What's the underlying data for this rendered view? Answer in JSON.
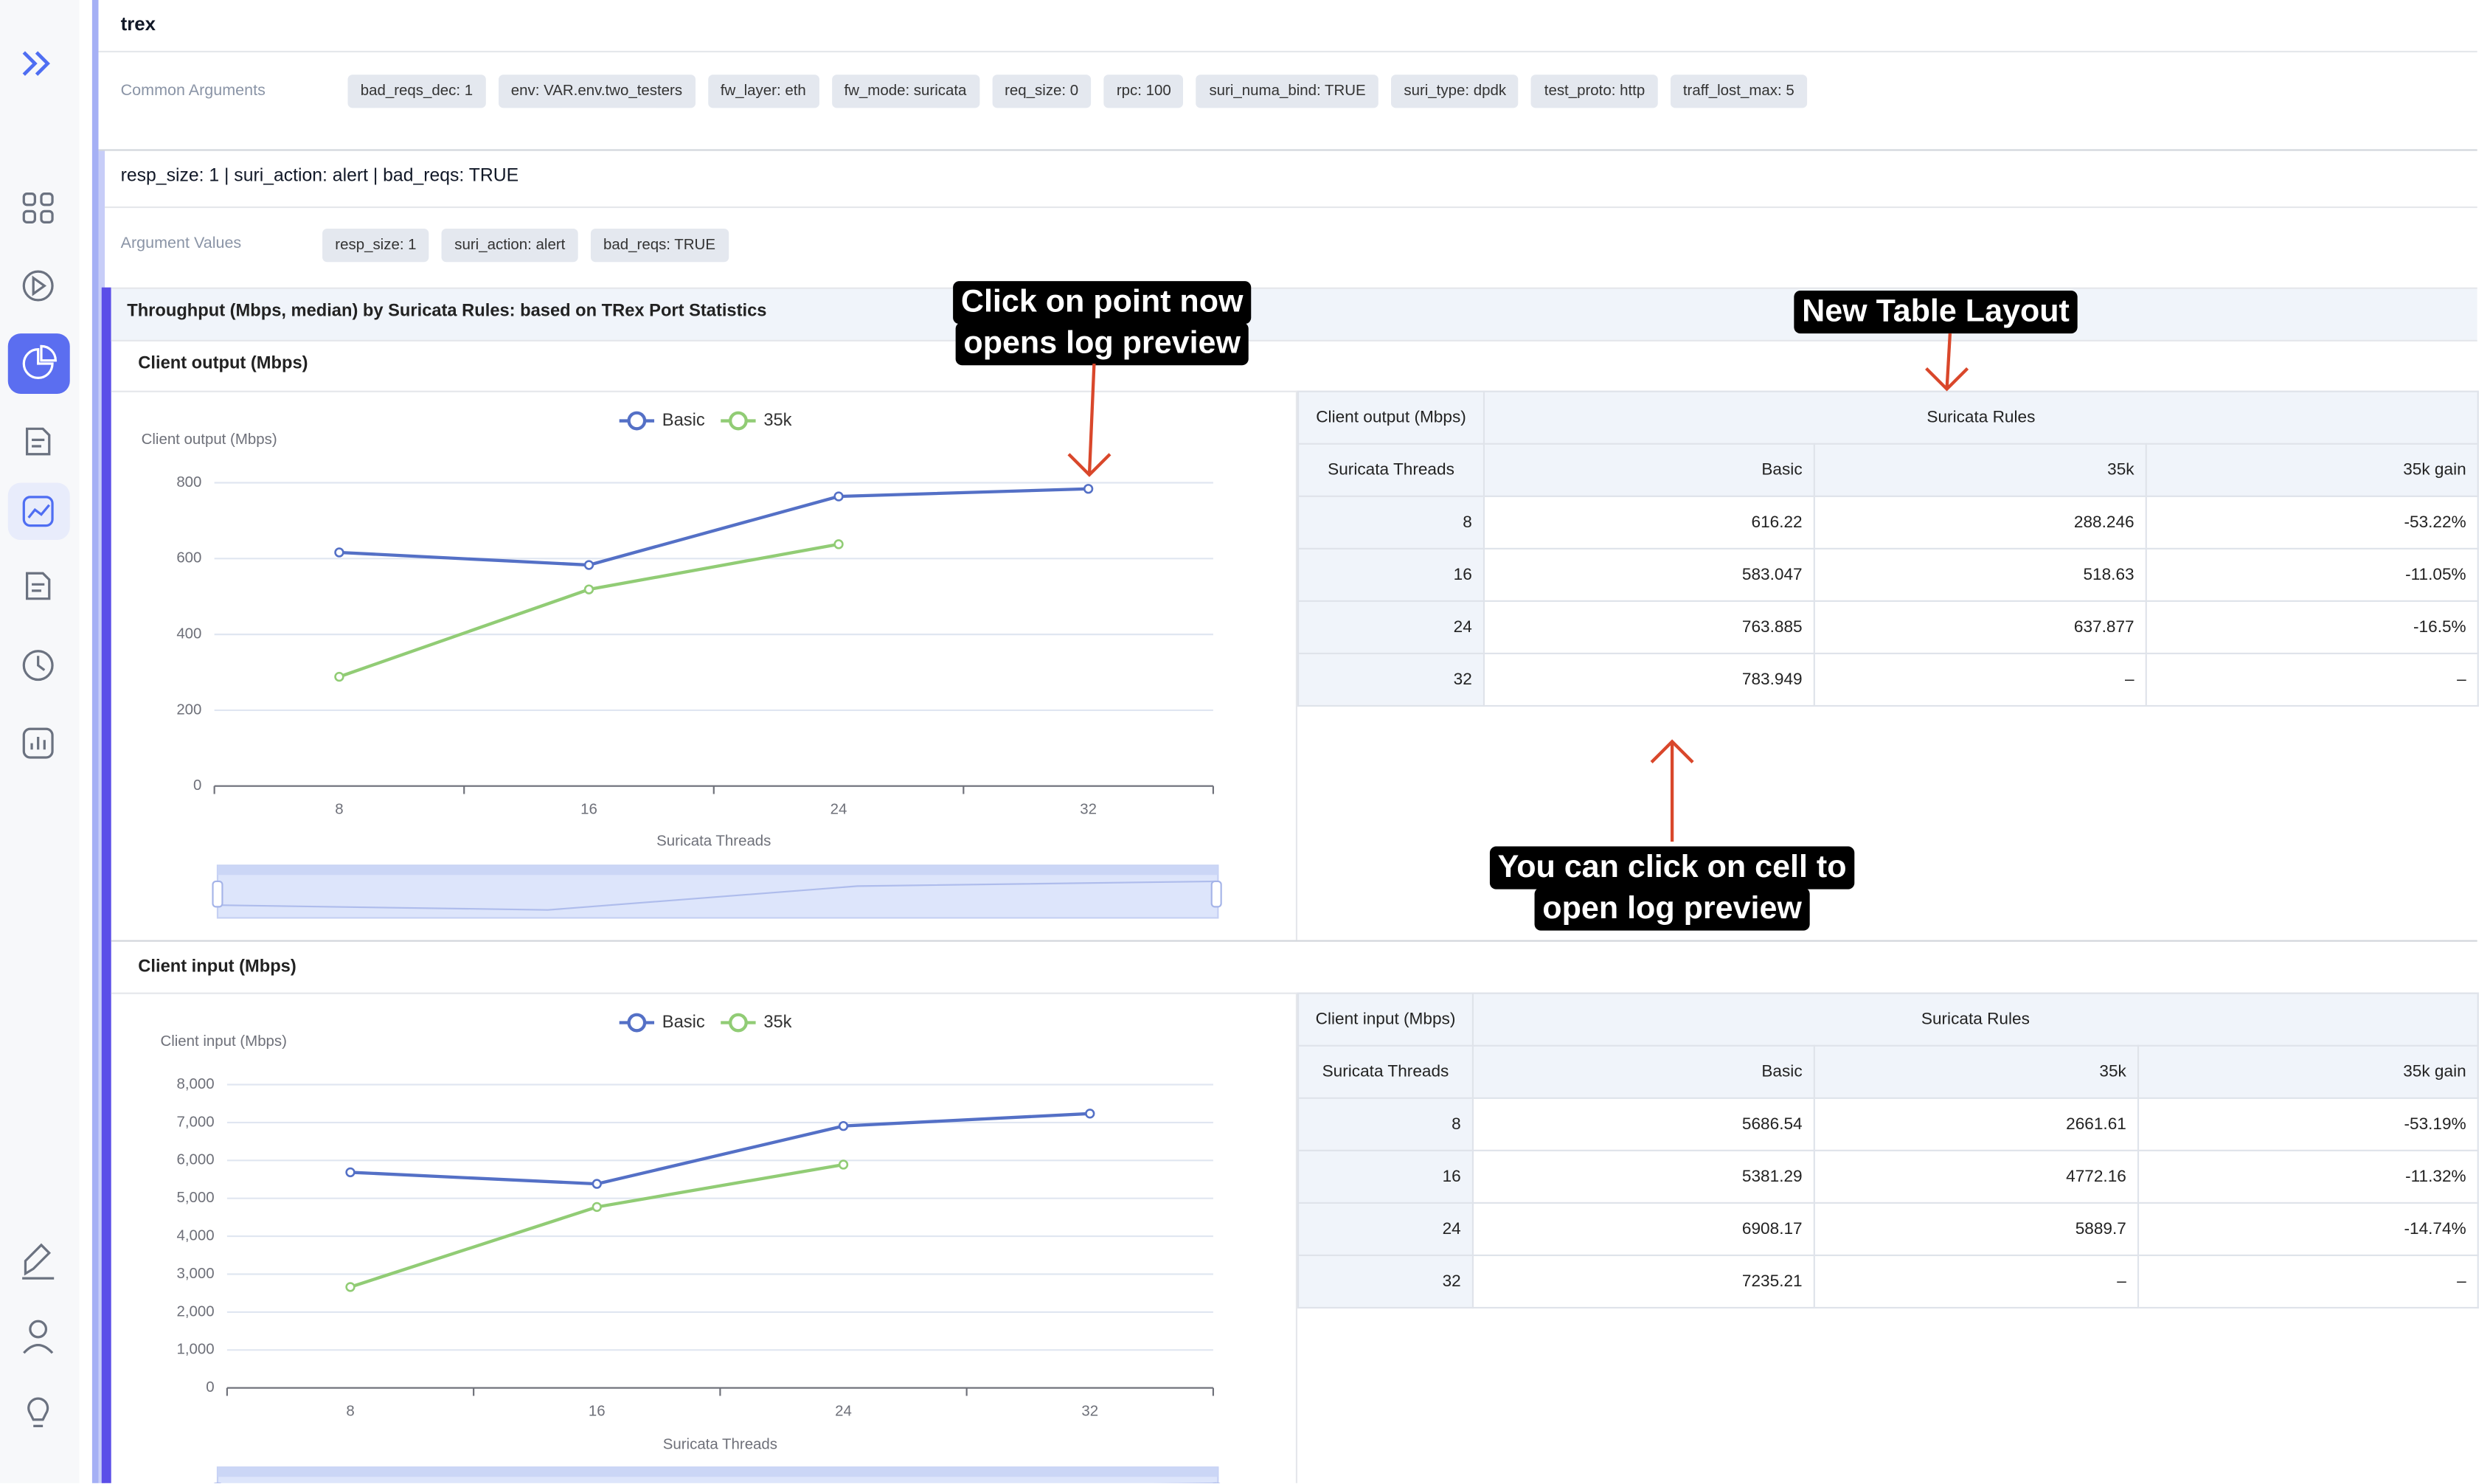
{
  "header": {
    "title": "trex"
  },
  "common_arguments": {
    "label": "Common Arguments",
    "chips": [
      "bad_reqs_dec: 1",
      "env: VAR.env.two_testers",
      "fw_layer: eth",
      "fw_mode: suricata",
      "req_size: 0",
      "rpc: 100",
      "suri_numa_bind: TRUE",
      "suri_type: dpdk",
      "test_proto: http",
      "traff_lost_max: 5"
    ]
  },
  "variant": {
    "title": "resp_size: 1 | suri_action: alert | bad_reqs: TRUE",
    "label": "Argument Values",
    "chips": [
      "resp_size: 1",
      "suri_action: alert",
      "bad_reqs: TRUE"
    ]
  },
  "section_title": "Throughput (Mbps, median) by Suricata Rules: based on TRex Port Statistics",
  "chart_data": [
    {
      "type": "line",
      "title": "Client output (Mbps)",
      "y_label": "Client output (Mbps)",
      "x_label": "Suricata Threads",
      "categories": [
        "8",
        "16",
        "24",
        "32"
      ],
      "series": [
        {
          "name": "Basic",
          "color": "#5470c6",
          "values": [
            616.22,
            583.047,
            763.885,
            783.949
          ]
        },
        {
          "name": "35k",
          "color": "#91cc75",
          "values": [
            288.246,
            518.63,
            637.877,
            null
          ]
        }
      ],
      "ylim": [
        0,
        800
      ],
      "yticks": [
        0,
        200,
        400,
        600,
        800
      ],
      "grid": true,
      "legend": "top"
    },
    {
      "type": "line",
      "title": "Client input (Mbps)",
      "y_label": "Client input (Mbps)",
      "x_label": "Suricata Threads",
      "categories": [
        "8",
        "16",
        "24",
        "32"
      ],
      "series": [
        {
          "name": "Basic",
          "color": "#5470c6",
          "values": [
            5686.54,
            5381.29,
            6908.17,
            7235.21
          ]
        },
        {
          "name": "35k",
          "color": "#91cc75",
          "values": [
            2661.61,
            4772.16,
            5889.7,
            null
          ]
        }
      ],
      "ylim": [
        0,
        8000
      ],
      "yticks": [
        0,
        {
          "value": 1000,
          "label": "1,000"
        },
        {
          "value": 2000,
          "label": "2,000"
        },
        {
          "value": 3000,
          "label": "3,000"
        },
        {
          "value": 4000,
          "label": "4,000"
        },
        {
          "value": 5000,
          "label": "5,000"
        },
        {
          "value": 6000,
          "label": "6,000"
        },
        {
          "value": 7000,
          "label": "7,000"
        },
        {
          "value": 8000,
          "label": "8,000"
        }
      ],
      "grid": true,
      "legend": "top"
    }
  ],
  "tables": [
    {
      "corner_top": "Client output (Mbps)",
      "corner_bottom": "Suricata Threads",
      "group": "Suricata Rules",
      "columns": [
        "Basic",
        "35k",
        "35k gain"
      ],
      "rows": [
        [
          "8",
          "616.22",
          "288.246",
          "-53.22%"
        ],
        [
          "16",
          "583.047",
          "518.63",
          "-11.05%"
        ],
        [
          "24",
          "763.885",
          "637.877",
          "-16.5%"
        ],
        [
          "32",
          "783.949",
          "–",
          "–"
        ]
      ]
    },
    {
      "corner_top": "Client input (Mbps)",
      "corner_bottom": "Suricata Threads",
      "group": "Suricata Rules",
      "columns": [
        "Basic",
        "35k",
        "35k gain"
      ],
      "rows": [
        [
          "8",
          "5686.54",
          "2661.61",
          "-53.19%"
        ],
        [
          "16",
          "5381.29",
          "4772.16",
          "-11.32%"
        ],
        [
          "24",
          "6908.17",
          "5889.7",
          "-14.74%"
        ],
        [
          "32",
          "7235.21",
          "–",
          "–"
        ]
      ]
    }
  ],
  "annotations": [
    {
      "lines": [
        "Click on point now",
        "opens log preview"
      ]
    },
    {
      "lines": [
        "New Table Layout"
      ]
    },
    {
      "lines": [
        "You can click on cell to",
        "open log preview"
      ]
    }
  ]
}
